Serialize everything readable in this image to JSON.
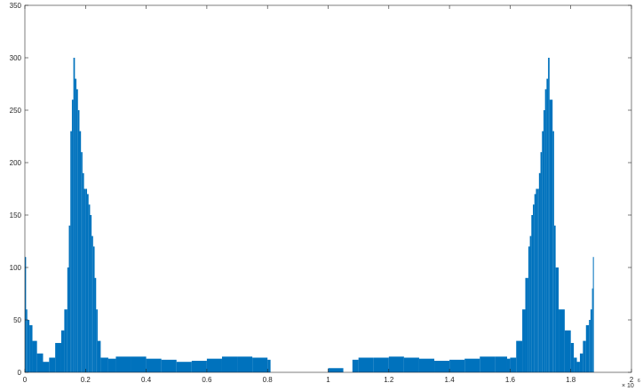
{
  "chart_data": {
    "type": "bar",
    "title": "",
    "xlabel": "",
    "ylabel": "",
    "xlim": [
      0,
      2000000
    ],
    "ylim": [
      0,
      350
    ],
    "x_exponent_label": "× 10",
    "x_exponent_power": "6",
    "xticks": [
      {
        "value": 0,
        "label": "0"
      },
      {
        "value": 200000,
        "label": "0.2"
      },
      {
        "value": 400000,
        "label": "0.4"
      },
      {
        "value": 600000,
        "label": "0.6"
      },
      {
        "value": 800000,
        "label": "0.8"
      },
      {
        "value": 1000000,
        "label": "1"
      },
      {
        "value": 1200000,
        "label": "1.2"
      },
      {
        "value": 1400000,
        "label": "1.4"
      },
      {
        "value": 1600000,
        "label": "1.6"
      },
      {
        "value": 1800000,
        "label": "1.8"
      },
      {
        "value": 2000000,
        "label": "2"
      }
    ],
    "yticks": [
      {
        "value": 0,
        "label": "0"
      },
      {
        "value": 50,
        "label": "50"
      },
      {
        "value": 100,
        "label": "100"
      },
      {
        "value": 150,
        "label": "150"
      },
      {
        "value": 200,
        "label": "200"
      },
      {
        "value": 250,
        "label": "250"
      },
      {
        "value": 300,
        "label": "300"
      },
      {
        "value": 350,
        "label": "350"
      }
    ],
    "grid": false,
    "series_color": "#0072BD",
    "series": [
      {
        "x": [
          0,
          4000,
          8000,
          15000,
          25000,
          40000,
          60000,
          80000,
          100000,
          120000,
          130000,
          140000,
          145000,
          150000,
          155000,
          160000,
          165000,
          170000,
          175000,
          180000,
          185000,
          190000,
          195000,
          200000,
          205000,
          210000,
          215000,
          220000,
          225000,
          230000,
          235000,
          240000,
          250000,
          275000,
          300000,
          350000,
          400000,
          450000,
          500000,
          550000,
          600000,
          650000,
          700000,
          750000,
          800000,
          810000,
          850000,
          900000,
          950000,
          1000000,
          1050000,
          1070000,
          1080000,
          1100000,
          1150000,
          1200000,
          1250000,
          1300000,
          1350000,
          1400000,
          1450000,
          1500000,
          1550000,
          1590000,
          1600000,
          1620000,
          1640000,
          1650000,
          1660000,
          1665000,
          1670000,
          1675000,
          1680000,
          1685000,
          1690000,
          1695000,
          1700000,
          1705000,
          1710000,
          1715000,
          1720000,
          1725000,
          1730000,
          1740000,
          1745000,
          1750000,
          1760000,
          1780000,
          1800000,
          1810000,
          1820000,
          1830000,
          1840000,
          1850000,
          1860000,
          1865000,
          1870000,
          1873000,
          1876000
        ],
        "y": [
          110,
          60,
          50,
          45,
          30,
          18,
          10,
          14,
          28,
          40,
          60,
          100,
          140,
          230,
          260,
          300,
          280,
          270,
          250,
          230,
          210,
          190,
          175,
          175,
          170,
          160,
          150,
          130,
          120,
          90,
          60,
          30,
          14,
          13,
          15,
          15,
          13,
          12,
          10,
          11,
          13,
          15,
          15,
          14,
          12,
          0,
          0,
          0,
          0,
          4,
          0,
          0,
          12,
          14,
          14,
          15,
          14,
          13,
          11,
          12,
          13,
          15,
          15,
          13,
          14,
          30,
          60,
          90,
          120,
          130,
          150,
          160,
          170,
          175,
          175,
          190,
          210,
          230,
          250,
          270,
          280,
          300,
          260,
          230,
          140,
          100,
          60,
          40,
          28,
          14,
          10,
          18,
          30,
          45,
          50,
          60,
          80,
          110,
          0
        ]
      }
    ]
  }
}
